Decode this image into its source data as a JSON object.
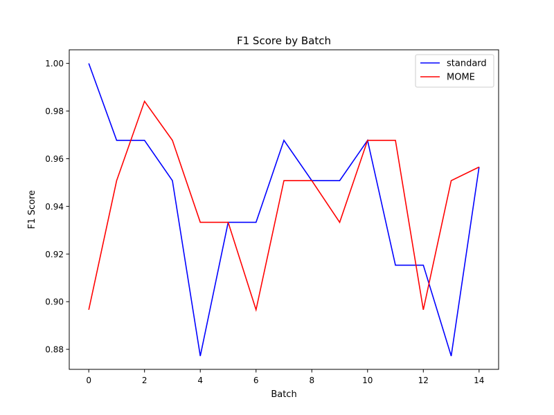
{
  "chart_data": {
    "type": "line",
    "title": "F1 Score by Batch",
    "xlabel": "Batch",
    "ylabel": "F1 Score",
    "x": [
      0,
      1,
      2,
      3,
      4,
      5,
      6,
      7,
      8,
      9,
      10,
      11,
      12,
      13,
      14
    ],
    "xlim": [
      -0.7,
      14.7
    ],
    "ylim": [
      0.8716,
      1.0057
    ],
    "xticks": [
      0,
      2,
      4,
      6,
      8,
      10,
      12,
      14
    ],
    "xtick_labels": [
      "0",
      "2",
      "4",
      "6",
      "8",
      "10",
      "12",
      "14"
    ],
    "yticks": [
      0.88,
      0.9,
      0.92,
      0.94,
      0.96,
      0.98,
      1.0
    ],
    "ytick_labels": [
      "0.88",
      "0.90",
      "0.92",
      "0.94",
      "0.96",
      "0.98",
      "1.00"
    ],
    "grid": false,
    "legend_position": "top-right",
    "series": [
      {
        "name": "standard",
        "color": "#0000ff",
        "values": [
          1.0,
          0.9677,
          0.9677,
          0.9508,
          0.8772,
          0.9333,
          0.9333,
          0.9677,
          0.9508,
          0.9508,
          0.9677,
          0.9153,
          0.9153,
          0.8772,
          0.9565
        ]
      },
      {
        "name": "MOME",
        "color": "#ff0000",
        "values": [
          0.8966,
          0.9508,
          0.9841,
          0.9677,
          0.9333,
          0.9333,
          0.8966,
          0.9508,
          0.9508,
          0.9333,
          0.9677,
          0.9677,
          0.8966,
          0.9508,
          0.9565
        ]
      }
    ]
  }
}
